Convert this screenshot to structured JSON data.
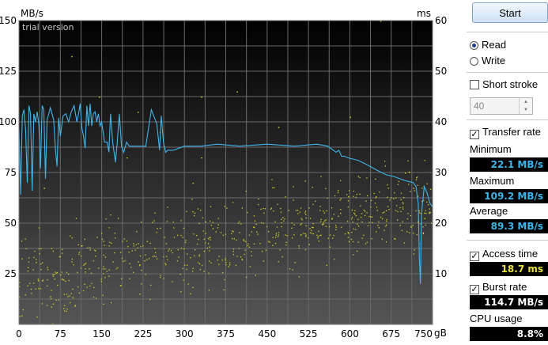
{
  "chart_data": {
    "type": "line",
    "watermark": "trial version",
    "left_axis_label": "MB/s",
    "right_axis_label": "ms",
    "x_unit_label": "gB",
    "x_ticks": [
      0,
      75,
      150,
      225,
      300,
      375,
      450,
      525,
      600,
      675,
      750
    ],
    "x_range": [
      0,
      750
    ],
    "y_left_ticks": [
      25,
      50,
      75,
      100,
      125,
      150
    ],
    "y_left_range": [
      0,
      150
    ],
    "y_right_ticks": [
      10,
      20,
      30,
      40,
      50,
      60
    ],
    "y_right_range": [
      0,
      60
    ],
    "grid": true,
    "series": [
      {
        "axis": "left",
        "color": "#3fb5ea",
        "style": "line",
        "x": [
          0,
          3,
          6,
          9,
          12,
          15,
          18,
          21,
          24,
          27,
          30,
          33,
          36,
          39,
          42,
          45,
          48,
          51,
          54,
          57,
          60,
          63,
          66,
          69,
          72,
          75,
          80,
          85,
          90,
          95,
          100,
          105,
          108,
          111,
          114,
          117,
          120,
          123,
          126,
          129,
          132,
          135,
          138,
          141,
          144,
          147,
          150,
          155,
          160,
          163,
          166,
          170,
          175,
          178,
          182,
          186,
          190,
          195,
          200,
          210,
          220,
          230,
          240,
          250,
          255,
          258,
          262,
          266,
          270,
          280,
          300,
          330,
          360,
          400,
          450,
          500,
          540,
          560,
          575,
          580,
          585,
          590,
          600,
          615,
          630,
          650,
          665,
          680,
          700,
          715,
          720,
          724,
          726,
          728,
          730,
          735,
          740,
          745,
          750
        ],
        "y": [
          97,
          64,
          103,
          106,
          96,
          70,
          108,
          104,
          66,
          104,
          100,
          105,
          99,
          77,
          108,
          106,
          72,
          101,
          104,
          107,
          104,
          101,
          87,
          78,
          102,
          93,
          103,
          104,
          100,
          105,
          108,
          100,
          104,
          109,
          97,
          93,
          87,
          108,
          98,
          109,
          98,
          104,
          105,
          100,
          104,
          98,
          100,
          90,
          90,
          85,
          104,
          90,
          80,
          89,
          104,
          88,
          85,
          90,
          88,
          88,
          88,
          88,
          106,
          99,
          86,
          103,
          90,
          85,
          86,
          86,
          88,
          88,
          89,
          88,
          89,
          88,
          89,
          88,
          85,
          86,
          83,
          83,
          82,
          81,
          79,
          76,
          74,
          73,
          71,
          70,
          68,
          60,
          33,
          20,
          55,
          68,
          65,
          60,
          58
        ]
      },
      {
        "axis": "right",
        "color": "#d6cf2a",
        "style": "scatter",
        "trend": {
          "x": [
            0,
            750
          ],
          "y": [
            9,
            24
          ]
        },
        "spread": 5.5,
        "count": 700,
        "outliers": {
          "x": [
            45,
            95,
            145,
            195,
            215,
            255,
            315,
            330,
            330,
            395,
            470,
            600,
            655,
            700,
            715,
            735
          ],
          "y": [
            27,
            53,
            45,
            33,
            42,
            38,
            28,
            33,
            45,
            46,
            39,
            41,
            60,
            30,
            27,
            21
          ]
        }
      }
    ]
  },
  "panel": {
    "start_label": "Start",
    "read_label": "Read",
    "write_label": "Write",
    "short_stroke_label": "Short stroke",
    "stroke_value": "40",
    "transfer_rate_label": "Transfer rate",
    "minimum_label": "Minimum",
    "minimum_value": "22.1 MB/s",
    "maximum_label": "Maximum",
    "maximum_value": "109.2 MB/s",
    "average_label": "Average",
    "average_value": "89.3 MB/s",
    "access_time_label": "Access time",
    "access_time_value": "18.7 ms",
    "burst_rate_label": "Burst rate",
    "burst_rate_value": "114.7 MB/s",
    "cpu_usage_label": "CPU usage",
    "cpu_usage_value": "8.8%",
    "value_color_blue": "#3fb5ea",
    "value_color_yellow": "#e8e23a",
    "value_color_white": "#ffffff"
  }
}
